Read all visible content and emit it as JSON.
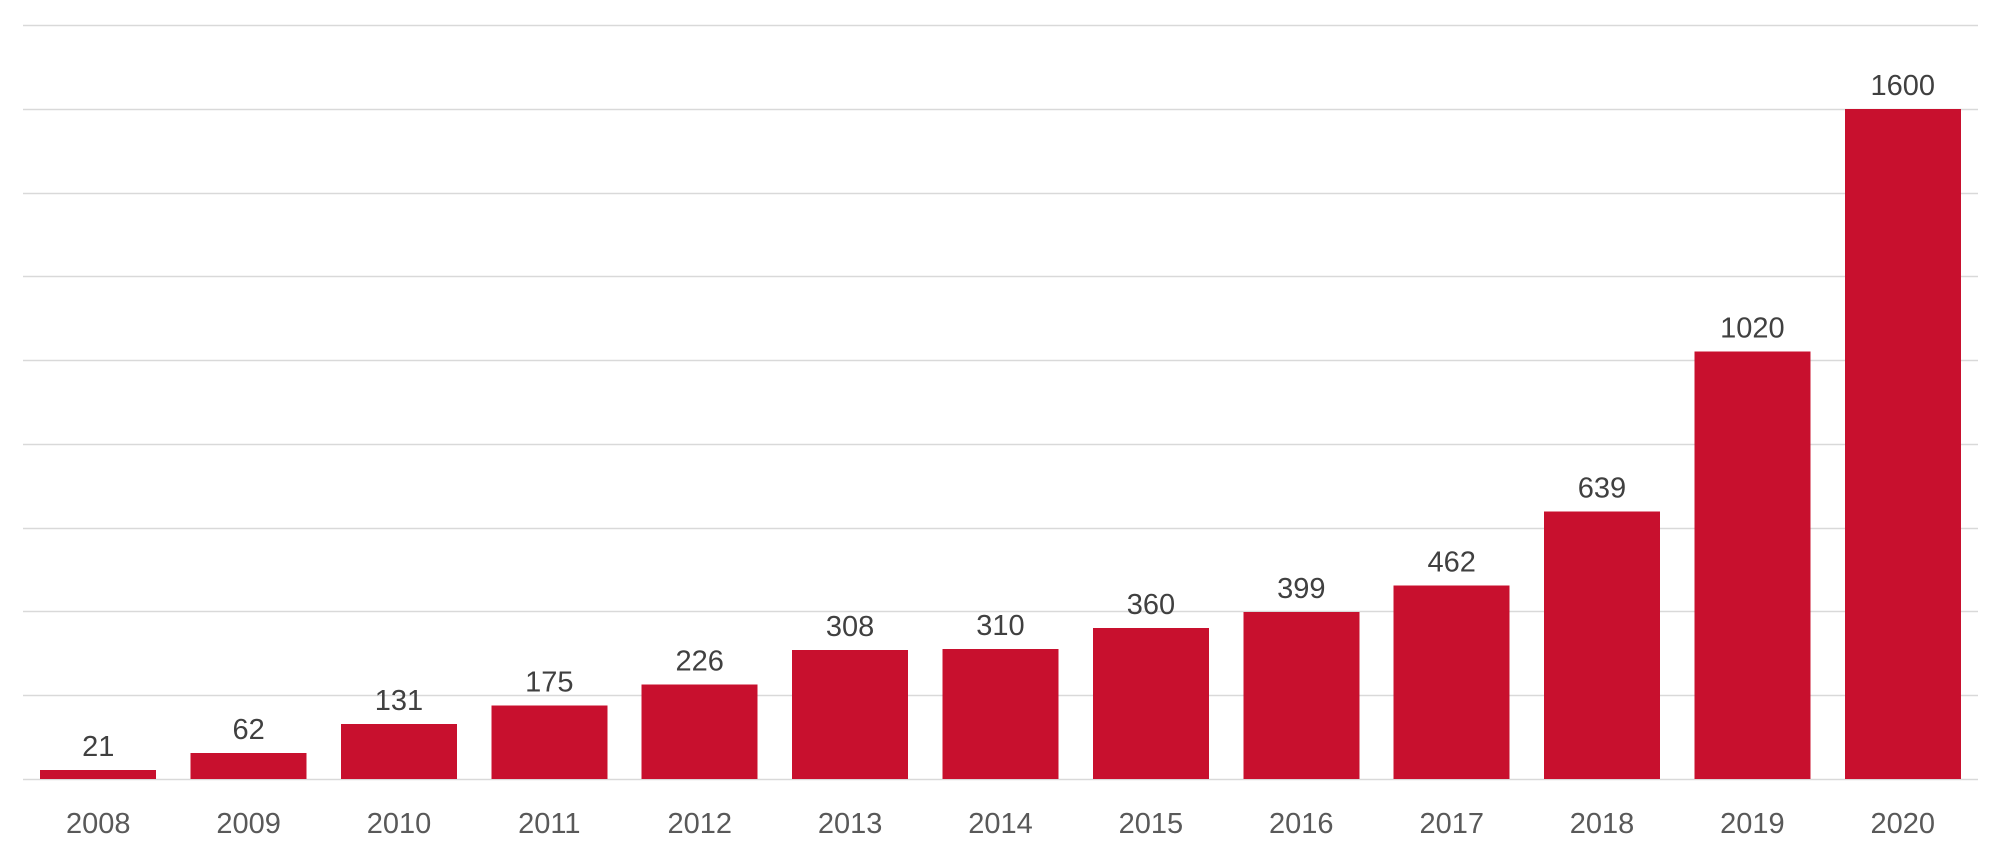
{
  "chart_data": {
    "type": "bar",
    "categories": [
      "2008",
      "2009",
      "2010",
      "2011",
      "2012",
      "2013",
      "2014",
      "2015",
      "2016",
      "2017",
      "2018",
      "2019",
      "2020"
    ],
    "values": [
      21,
      62,
      131,
      175,
      226,
      308,
      310,
      360,
      399,
      462,
      639,
      1020,
      1600
    ],
    "title": "",
    "xlabel": "",
    "ylabel": "",
    "ylim": [
      0,
      1800
    ],
    "y_tick_step": 200,
    "y_tick_labels_visible": false,
    "grid": true,
    "data_labels": true,
    "legend": "none",
    "colors": {
      "bar": "#c8102e",
      "grid": "#d9d9d9",
      "value_text": "#404040",
      "tick_text": "#595959"
    }
  }
}
